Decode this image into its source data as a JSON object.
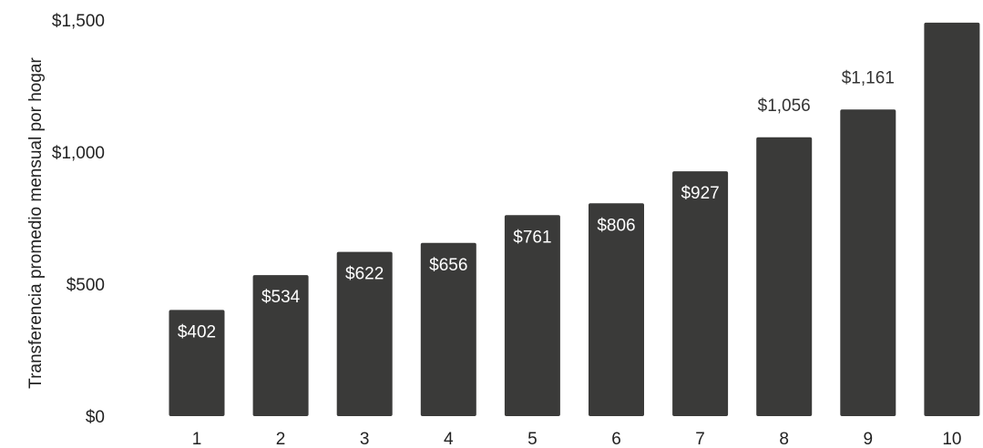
{
  "chart_data": {
    "type": "bar",
    "title": "",
    "xlabel": "",
    "ylabel": "Transferencia promedio mensual por hogar",
    "categories": [
      "1",
      "2",
      "3",
      "4",
      "5",
      "6",
      "7",
      "8",
      "9",
      "10"
    ],
    "values": [
      402,
      534,
      622,
      656,
      761,
      806,
      927,
      1056,
      1161,
      1490
    ],
    "data_labels": [
      "$402",
      "$534",
      "$622",
      "$656",
      "$761",
      "$806",
      "$927",
      "$1,056",
      "$1,161",
      ""
    ],
    "yticks": [
      0,
      500,
      1000,
      1500
    ],
    "ytick_labels": [
      "$0",
      "$500",
      "$1,000",
      "$1,500"
    ],
    "ylim": [
      0,
      1500
    ],
    "grid": false,
    "legend": "none",
    "bar_color": "#3a3a39",
    "label_inside_color": "#ffffff",
    "label_outside_color": "#333333"
  }
}
